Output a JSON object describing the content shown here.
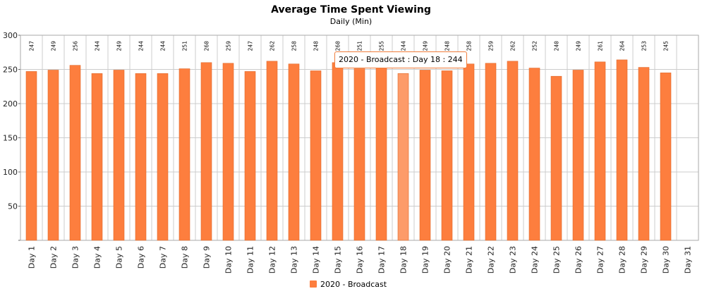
{
  "colors": {
    "bar": "#fd7e3e",
    "bar_highlight": "#fd9b69",
    "bar_edge": "#e06a2c",
    "grid": "#cccccc",
    "frame": "#aaaaaa",
    "tooltip_border": "#ef7d3c"
  },
  "tooltip": {
    "text": "2020 - Broadcast : Day 18 : 244",
    "highlight_index": 17
  },
  "chart_data": {
    "type": "bar",
    "title": "Average Time Spent Viewing",
    "subtitle": "Daily (Min)",
    "xlabel": "",
    "ylabel": "",
    "ylim": [
      0,
      300
    ],
    "yticks": [
      50,
      100,
      150,
      200,
      250,
      300
    ],
    "grid": true,
    "legend_position": "bottom-center",
    "categories": [
      "Day 1",
      "Day 2",
      "Day 3",
      "Day 4",
      "Day 5",
      "Day 6",
      "Day 7",
      "Day 8",
      "Day 9",
      "Day 10",
      "Day 11",
      "Day 12",
      "Day 13",
      "Day 14",
      "Day 15",
      "Day 16",
      "Day 17",
      "Day 18",
      "Day 19",
      "Day 20",
      "Day 21",
      "Day 22",
      "Day 23",
      "Day 24",
      "Day 25",
      "Day 26",
      "Day 27",
      "Day 28",
      "Day 29",
      "Day 30",
      "Day 31"
    ],
    "series": [
      {
        "name": "2020 - Broadcast",
        "values": [
          247,
          249,
          256,
          244,
          249,
          244,
          244,
          251,
          260,
          259,
          247,
          262,
          258,
          248,
          260,
          251,
          255,
          244,
          249,
          248,
          258,
          259,
          262,
          252,
          240,
          249,
          261,
          264,
          253,
          245,
          null
        ]
      }
    ]
  }
}
